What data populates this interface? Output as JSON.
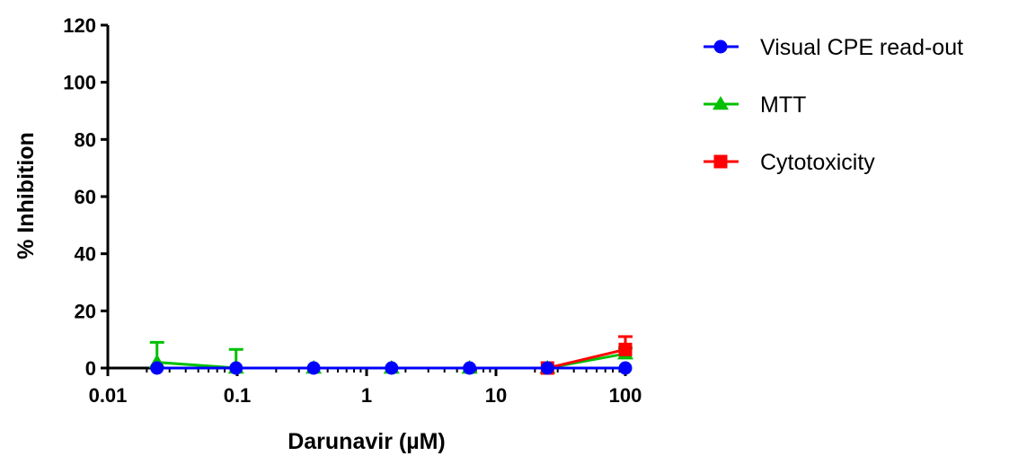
{
  "chart_data": {
    "type": "line",
    "title": "",
    "xlabel": "Darunavir (µM)",
    "ylabel": "% Inhibition",
    "x_scale": "log",
    "xlim": [
      0.01,
      100
    ],
    "ylim": [
      0,
      120
    ],
    "x_ticks": [
      "0.01",
      "0.1",
      "1",
      "10",
      "100"
    ],
    "y_ticks": [
      "0",
      "20",
      "40",
      "60",
      "80",
      "100",
      "120"
    ],
    "grid": false,
    "legend_position": "right",
    "series": [
      {
        "name": "Visual CPE read-out",
        "color": "#0000ff",
        "marker": "circle",
        "points": [
          {
            "x": 0.024,
            "y": 0
          },
          {
            "x": 0.098,
            "y": 0
          },
          {
            "x": 0.39,
            "y": 0
          },
          {
            "x": 1.56,
            "y": 0
          },
          {
            "x": 6.25,
            "y": 0
          },
          {
            "x": 25,
            "y": 0
          },
          {
            "x": 100,
            "y": 0
          }
        ]
      },
      {
        "name": "MTT",
        "color": "#00c000",
        "marker": "triangle",
        "points": [
          {
            "x": 0.024,
            "y": 2,
            "err": 7
          },
          {
            "x": 0.098,
            "y": 0,
            "err": 6.5
          },
          {
            "x": 0.39,
            "y": 0
          },
          {
            "x": 1.56,
            "y": 0
          },
          {
            "x": 6.25,
            "y": 0
          },
          {
            "x": 25,
            "y": 0
          },
          {
            "x": 100,
            "y": 5,
            "err": 2
          }
        ]
      },
      {
        "name": "Cytotoxicity",
        "color": "#ff0000",
        "marker": "square",
        "points": [
          {
            "x": 25,
            "y": 0
          },
          {
            "x": 100,
            "y": 6.5,
            "err": 4.5
          }
        ]
      }
    ]
  }
}
